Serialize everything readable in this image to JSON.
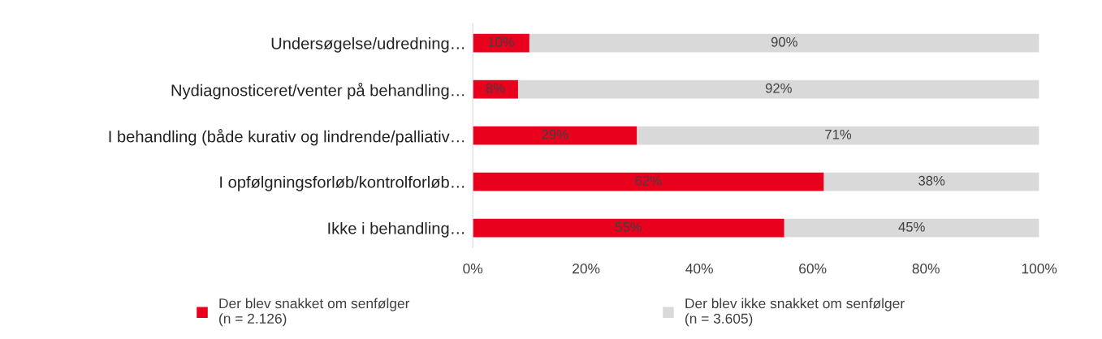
{
  "chart_data": {
    "type": "bar",
    "orientation": "horizontal",
    "stacked": true,
    "categories": [
      "Undersøgelse/udredning…",
      "Nydiagnosticeret/venter på behandling…",
      "I behandling (både kurativ og lindrende/palliativ…",
      "I opfølgningsforløb/kontrolforløb…",
      "Ikke i behandling…"
    ],
    "series": [
      {
        "name": "Der blev snakket om senfølger\n(n = 2.126)",
        "color": "#e8001c",
        "values": [
          10,
          8,
          29,
          62,
          55
        ],
        "value_labels": [
          "10%",
          "8%",
          "29%",
          "62%",
          "55%"
        ]
      },
      {
        "name": "Der blev ikke snakket om senfølger\n(n = 3.605)",
        "color": "#d9d9d9",
        "values": [
          90,
          92,
          71,
          38,
          45
        ],
        "value_labels": [
          "90%",
          "92%",
          "71%",
          "38%",
          "45%"
        ]
      }
    ],
    "xlim": [
      0,
      100
    ],
    "xticks": [
      {
        "value": 0,
        "label": "0%"
      },
      {
        "value": 20,
        "label": "20%"
      },
      {
        "value": 40,
        "label": "40%"
      },
      {
        "value": 60,
        "label": "60%"
      },
      {
        "value": 80,
        "label": "80%"
      },
      {
        "value": 100,
        "label": "100%"
      }
    ],
    "grid": false,
    "legend": "bottom"
  }
}
